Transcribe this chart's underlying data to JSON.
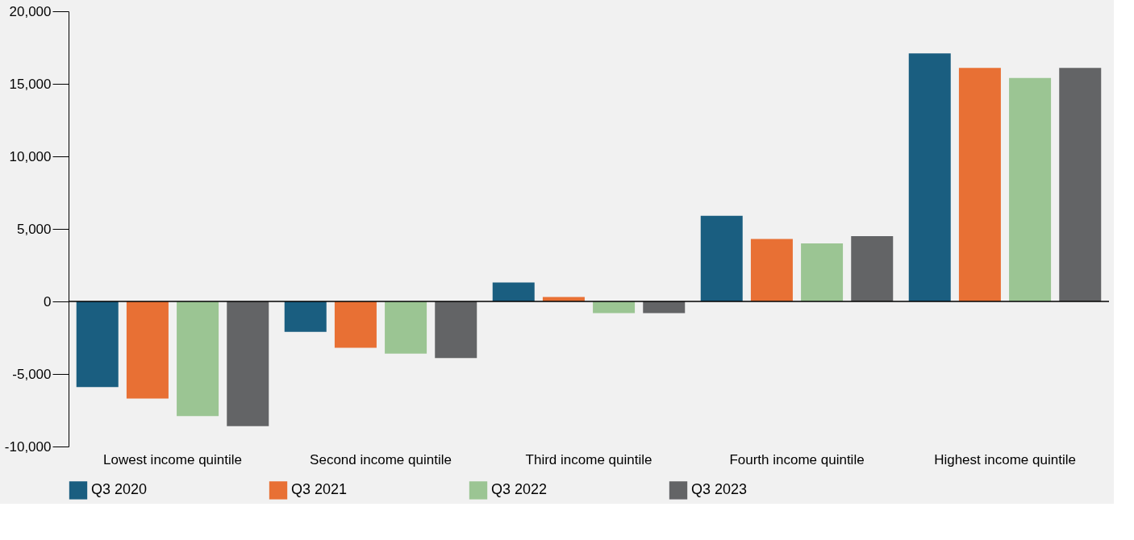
{
  "chart_data": {
    "type": "bar",
    "categories": [
      "Lowest income quintile",
      "Second income quintile",
      "Third income quintile",
      "Fourth income quintile",
      "Highest income quintile"
    ],
    "series": [
      {
        "name": "Q3 2020",
        "color": "#1a5e80",
        "values": [
          -5900,
          -2100,
          1300,
          5900,
          17100
        ]
      },
      {
        "name": "Q3 2021",
        "color": "#e87034",
        "values": [
          -6700,
          -3200,
          300,
          4300,
          16100
        ]
      },
      {
        "name": "Q3 2022",
        "color": "#9bc593",
        "values": [
          -7900,
          -3600,
          -800,
          4000,
          15400
        ]
      },
      {
        "name": "Q3 2023",
        "color": "#636466",
        "values": [
          -8600,
          -3900,
          -800,
          4500,
          16100
        ]
      }
    ],
    "ylim": [
      -10000,
      20000
    ],
    "yticks": [
      {
        "value": -10000,
        "label": "-10,000"
      },
      {
        "value": -5000,
        "label": "-5,000"
      },
      0,
      {
        "value": 5000,
        "label": "5,000"
      },
      {
        "value": 10000,
        "label": "10,000"
      },
      {
        "value": 15000,
        "label": "15,000"
      },
      {
        "value": 20000,
        "label": "20,000"
      }
    ],
    "ref_lines": [
      {
        "axis": "y",
        "value": 0,
        "color": "#000000"
      }
    ],
    "legend": "bottom"
  }
}
